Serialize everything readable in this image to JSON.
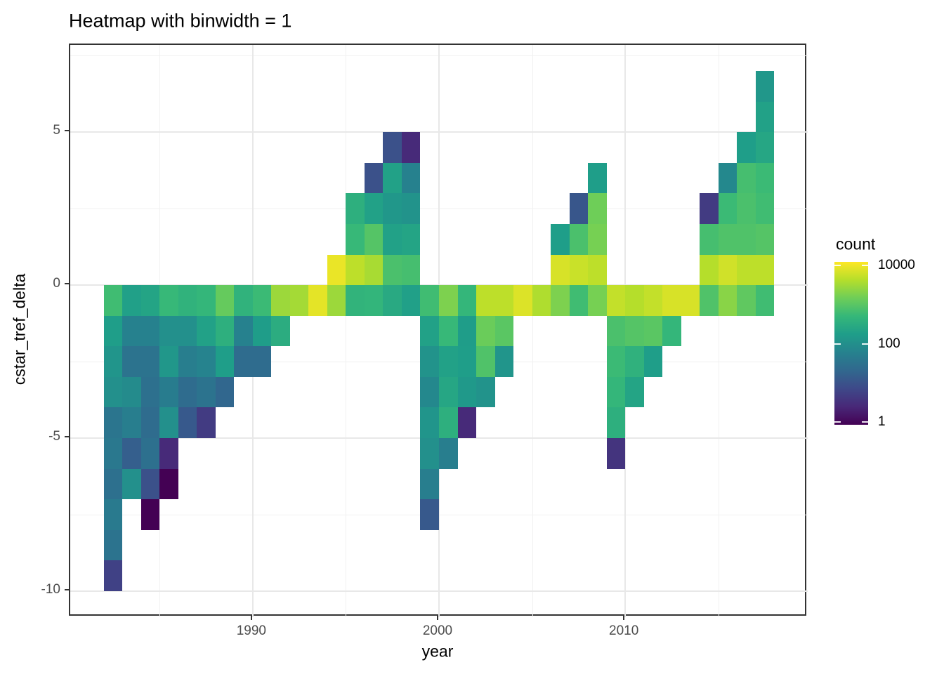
{
  "title": "Heatmap with binwidth = 1",
  "axes": {
    "x": {
      "label": "year",
      "ticks": [
        1990,
        2000,
        2010
      ],
      "minor_ticks": [
        1985,
        1995,
        2005,
        2015
      ],
      "domain": [
        1980.2,
        2019.8
      ]
    },
    "y": {
      "label": "cstar_tref_delta",
      "ticks": [
        5,
        0,
        -5,
        -10
      ],
      "minor_ticks": [
        7.5,
        2.5,
        -2.5,
        -7.5
      ],
      "domain": [
        -10.85,
        7.85
      ]
    }
  },
  "legend": {
    "title": "count",
    "ticks": [
      10000,
      100,
      1
    ],
    "scale": "log10",
    "limits": [
      1,
      10000
    ]
  },
  "colors": {
    "viridis_stops": [
      "#440154",
      "#482878",
      "#3E4989",
      "#31688E",
      "#26828E",
      "#1F9E89",
      "#35B779",
      "#6ECE58",
      "#B5DE2B",
      "#FDE725"
    ],
    "gridline_major": "#E8E8E8",
    "gridline_minor": "#F1F1F1",
    "panel_border": "#333333",
    "background": "#FFFFFF",
    "title_text": "#000000",
    "tick_text": "#4D4D4D"
  },
  "chart_data": {
    "type": "heatmap",
    "title": "Heatmap with binwidth = 1",
    "xlabel": "year",
    "ylabel": "cstar_tref_delta",
    "value_label": "count",
    "x_binwidth": 1,
    "y_binwidth": 1,
    "color_scale": "viridis, log10 from 1 (dark purple) to 10000 (yellow)",
    "cells_format": "[year_bin_left, delta_bin_bottom, count]",
    "cells": [
      [
        1982,
        -1,
        570
      ],
      [
        1982,
        -2,
        170
      ],
      [
        1982,
        -3,
        120
      ],
      [
        1982,
        -4,
        100
      ],
      [
        1982,
        -5,
        36
      ],
      [
        1982,
        -6,
        40
      ],
      [
        1982,
        -7,
        30
      ],
      [
        1982,
        -8,
        44
      ],
      [
        1982,
        -9,
        33
      ],
      [
        1982,
        -10,
        6
      ],
      [
        1983,
        -1,
        180
      ],
      [
        1983,
        -2,
        58
      ],
      [
        1983,
        -3,
        33
      ],
      [
        1983,
        -4,
        83
      ],
      [
        1983,
        -5,
        52
      ],
      [
        1983,
        -6,
        16
      ],
      [
        1983,
        -7,
        100
      ],
      [
        1984,
        -1,
        210
      ],
      [
        1984,
        -2,
        58
      ],
      [
        1984,
        -3,
        33
      ],
      [
        1984,
        -4,
        30
      ],
      [
        1984,
        -5,
        25
      ],
      [
        1984,
        -6,
        30
      ],
      [
        1984,
        -7,
        10
      ],
      [
        1984,
        -8,
        1
      ],
      [
        1985,
        -1,
        480
      ],
      [
        1985,
        -2,
        100
      ],
      [
        1985,
        -3,
        130
      ],
      [
        1985,
        -4,
        48
      ],
      [
        1985,
        -5,
        100
      ],
      [
        1985,
        -6,
        3
      ],
      [
        1985,
        -7,
        1
      ],
      [
        1986,
        -1,
        380
      ],
      [
        1986,
        -2,
        100
      ],
      [
        1986,
        -3,
        52
      ],
      [
        1986,
        -4,
        25
      ],
      [
        1986,
        -5,
        13
      ],
      [
        1987,
        -1,
        440
      ],
      [
        1987,
        -2,
        190
      ],
      [
        1987,
        -3,
        63
      ],
      [
        1987,
        -4,
        33
      ],
      [
        1987,
        -5,
        5
      ],
      [
        1988,
        -1,
        1100
      ],
      [
        1988,
        -2,
        330
      ],
      [
        1988,
        -3,
        170
      ],
      [
        1988,
        -4,
        21
      ],
      [
        1989,
        -1,
        380
      ],
      [
        1989,
        -2,
        58
      ],
      [
        1989,
        -3,
        25
      ],
      [
        1990,
        -1,
        520
      ],
      [
        1990,
        -2,
        160
      ],
      [
        1990,
        -3,
        25
      ],
      [
        1991,
        -1,
        2500
      ],
      [
        1991,
        -2,
        300
      ],
      [
        1992,
        -1,
        2800
      ],
      [
        1993,
        -1,
        7000
      ],
      [
        1994,
        0,
        7600
      ],
      [
        1994,
        -1,
        2500
      ],
      [
        1995,
        2,
        330
      ],
      [
        1995,
        1,
        480
      ],
      [
        1995,
        0,
        4000
      ],
      [
        1995,
        -1,
        400
      ],
      [
        1996,
        3,
        10
      ],
      [
        1996,
        2,
        190
      ],
      [
        1996,
        1,
        830
      ],
      [
        1996,
        0,
        3000
      ],
      [
        1996,
        -1,
        420
      ],
      [
        1997,
        4,
        10
      ],
      [
        1997,
        3,
        190
      ],
      [
        1997,
        2,
        130
      ],
      [
        1997,
        1,
        190
      ],
      [
        1997,
        0,
        690
      ],
      [
        1997,
        -1,
        260
      ],
      [
        1998,
        4,
        3
      ],
      [
        1998,
        3,
        58
      ],
      [
        1998,
        2,
        110
      ],
      [
        1998,
        1,
        210
      ],
      [
        1998,
        0,
        630
      ],
      [
        1998,
        -1,
        180
      ],
      [
        1999,
        -1,
        570
      ],
      [
        1999,
        -2,
        190
      ],
      [
        1999,
        -3,
        110
      ],
      [
        1999,
        -4,
        76
      ],
      [
        1999,
        -5,
        120
      ],
      [
        1999,
        -6,
        100
      ],
      [
        1999,
        -7,
        52
      ],
      [
        1999,
        -8,
        13
      ],
      [
        2000,
        -1,
        1600
      ],
      [
        2000,
        -2,
        480
      ],
      [
        2000,
        -3,
        190
      ],
      [
        2000,
        -4,
        230
      ],
      [
        2000,
        -5,
        330
      ],
      [
        2000,
        -6,
        52
      ],
      [
        2001,
        -1,
        440
      ],
      [
        2001,
        -2,
        160
      ],
      [
        2001,
        -3,
        170
      ],
      [
        2001,
        -4,
        140
      ],
      [
        2001,
        -5,
        3
      ],
      [
        2002,
        -1,
        4000
      ],
      [
        2002,
        -2,
        1200
      ],
      [
        2002,
        -3,
        760
      ],
      [
        2002,
        -4,
        110
      ],
      [
        2003,
        -1,
        4000
      ],
      [
        2003,
        -2,
        910
      ],
      [
        2003,
        -3,
        120
      ],
      [
        2004,
        -1,
        6300
      ],
      [
        2005,
        -1,
        3300
      ],
      [
        2006,
        1,
        170
      ],
      [
        2006,
        0,
        5800
      ],
      [
        2006,
        -1,
        1600
      ],
      [
        2007,
        2,
        12
      ],
      [
        2007,
        1,
        690
      ],
      [
        2007,
        0,
        4800
      ],
      [
        2007,
        -1,
        570
      ],
      [
        2008,
        3,
        170
      ],
      [
        2008,
        2,
        1300
      ],
      [
        2008,
        1,
        1450
      ],
      [
        2008,
        0,
        4000
      ],
      [
        2008,
        -1,
        1450
      ],
      [
        2009,
        -1,
        4400
      ],
      [
        2009,
        -2,
        690
      ],
      [
        2009,
        -3,
        520
      ],
      [
        2009,
        -4,
        440
      ],
      [
        2009,
        -5,
        330
      ],
      [
        2009,
        -6,
        4
      ],
      [
        2010,
        -1,
        3600
      ],
      [
        2010,
        -2,
        830
      ],
      [
        2010,
        -3,
        370
      ],
      [
        2010,
        -4,
        210
      ],
      [
        2011,
        -1,
        4400
      ],
      [
        2011,
        -2,
        910
      ],
      [
        2011,
        -3,
        170
      ],
      [
        2012,
        -1,
        5800
      ],
      [
        2012,
        -2,
        440
      ],
      [
        2013,
        -1,
        5800
      ],
      [
        2014,
        2,
        5
      ],
      [
        2014,
        1,
        630
      ],
      [
        2014,
        0,
        3600
      ],
      [
        2014,
        -1,
        760
      ],
      [
        2015,
        3,
        76
      ],
      [
        2015,
        2,
        520
      ],
      [
        2015,
        1,
        760
      ],
      [
        2015,
        0,
        5300
      ],
      [
        2015,
        -1,
        1900
      ],
      [
        2016,
        4,
        170
      ],
      [
        2016,
        3,
        630
      ],
      [
        2016,
        2,
        690
      ],
      [
        2016,
        1,
        760
      ],
      [
        2016,
        0,
        4000
      ],
      [
        2016,
        -1,
        1000
      ],
      [
        2017,
        6,
        130
      ],
      [
        2017,
        5,
        190
      ],
      [
        2017,
        4,
        230
      ],
      [
        2017,
        3,
        520
      ],
      [
        2017,
        2,
        570
      ],
      [
        2017,
        1,
        830
      ],
      [
        2017,
        0,
        4000
      ],
      [
        2017,
        -1,
        570
      ]
    ]
  }
}
